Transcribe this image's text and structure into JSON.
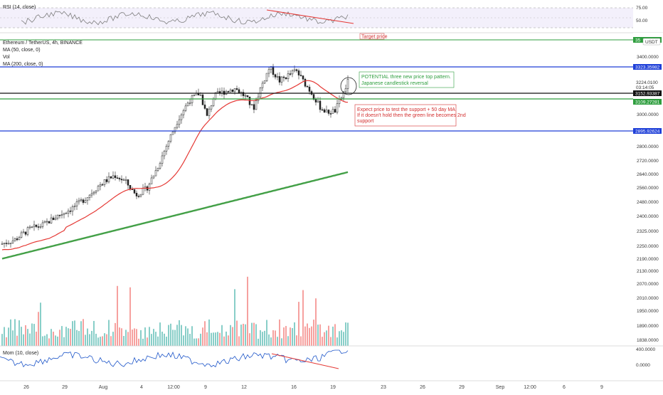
{
  "colors": {
    "up": "#26a69a",
    "down": "#ef5350",
    "ma50": "#e53935",
    "ma200": "#43a047",
    "rsi": "#7e7e7e",
    "mom": "#1e56c9",
    "blue_level": "#1e3fd8",
    "green_level": "#2e9e3e",
    "black_level": "#111111",
    "note_green": "#2e9e3e",
    "note_red": "#d32f2f",
    "divergence": "#e53935"
  },
  "header": {
    "symbol": "Ethereum / TetherUS, 4h, BINANCE",
    "ma50": "MA (50, close, 0)",
    "vol": "Vol",
    "ma200": "MA (200, close, 0)"
  },
  "rsi_pane": {
    "label": "RSI (14, close)",
    "ticks": [
      "75.00",
      "50.00"
    ]
  },
  "mom_pane": {
    "label": "Mom (10, close)",
    "ticks": [
      "400.0000",
      "0.0000"
    ]
  },
  "price_axis": {
    "unit": "USDT",
    "ticks": [
      "3400.0000",
      "3224.0100",
      "3000.0000",
      "2800.0000",
      "2720.0000",
      "2640.0000",
      "2560.0000",
      "2480.0000",
      "2400.0000",
      "2325.0000",
      "2250.0000",
      "2190.0000",
      "2130.0000",
      "2070.0000",
      "2010.0000",
      "1950.0000",
      "1890.0000",
      "1838.0000"
    ],
    "countdown": "03:14:05"
  },
  "x_axis": {
    "ticks": [
      "26",
      "29",
      "Aug",
      "4",
      "12:00",
      "9",
      "12",
      "16",
      "19",
      "23",
      "26",
      "29",
      "Sep",
      "12:00",
      "6",
      "9"
    ]
  },
  "chart_data": {
    "type": "candlestick",
    "symbol": "ETH/USDT",
    "interval": "4h",
    "exchange": "BINANCE",
    "y_range": [
      1810,
      3600
    ],
    "candles_ohlc": [],
    "horizontal_levels": [
      {
        "value": 3323.35982,
        "label": "3323.35982",
        "color": "blue"
      },
      {
        "value": 3152.93387,
        "label": "3152.93387",
        "color": "black"
      },
      {
        "value": 3109.27281,
        "label": "3109.27281",
        "color": "green"
      },
      {
        "value": 2895.92624,
        "label": "2895.92624",
        "color": "blue"
      },
      {
        "value": 3540.0,
        "label": "35",
        "color": "green"
      }
    ],
    "current_price": 3224.01,
    "ma50_end": 3180,
    "ma200_end": 2620,
    "annotations": [
      {
        "text": "Target price",
        "color": "red"
      },
      {
        "text": "POTENTIAL three new price top pattern. Japanese candlestick reversal",
        "color": "green"
      },
      {
        "text": "Expect price to test the support + 50 day MA If it doesn't hold then the green line becomes 2nd support",
        "color": "red"
      }
    ],
    "divergence_lines": [
      "RSI",
      "Mom"
    ]
  },
  "annotations": {
    "target": "Target price",
    "potential_line1": "POTENTIAL three new price top pattern.",
    "potential_line2": "Japanese candlestick reversal",
    "expect_line1": "Expect price to test the support + 50 day MA",
    "expect_line2": "If it doesn't hold then the green line becomes 2nd",
    "expect_line3": "support"
  },
  "price_labels": {
    "top_green": "35",
    "blue_top": "3323.35982",
    "black": "3152.93387",
    "green": "3109.27281",
    "blue_bottom": "2895.92624",
    "current": "3224.0100"
  }
}
